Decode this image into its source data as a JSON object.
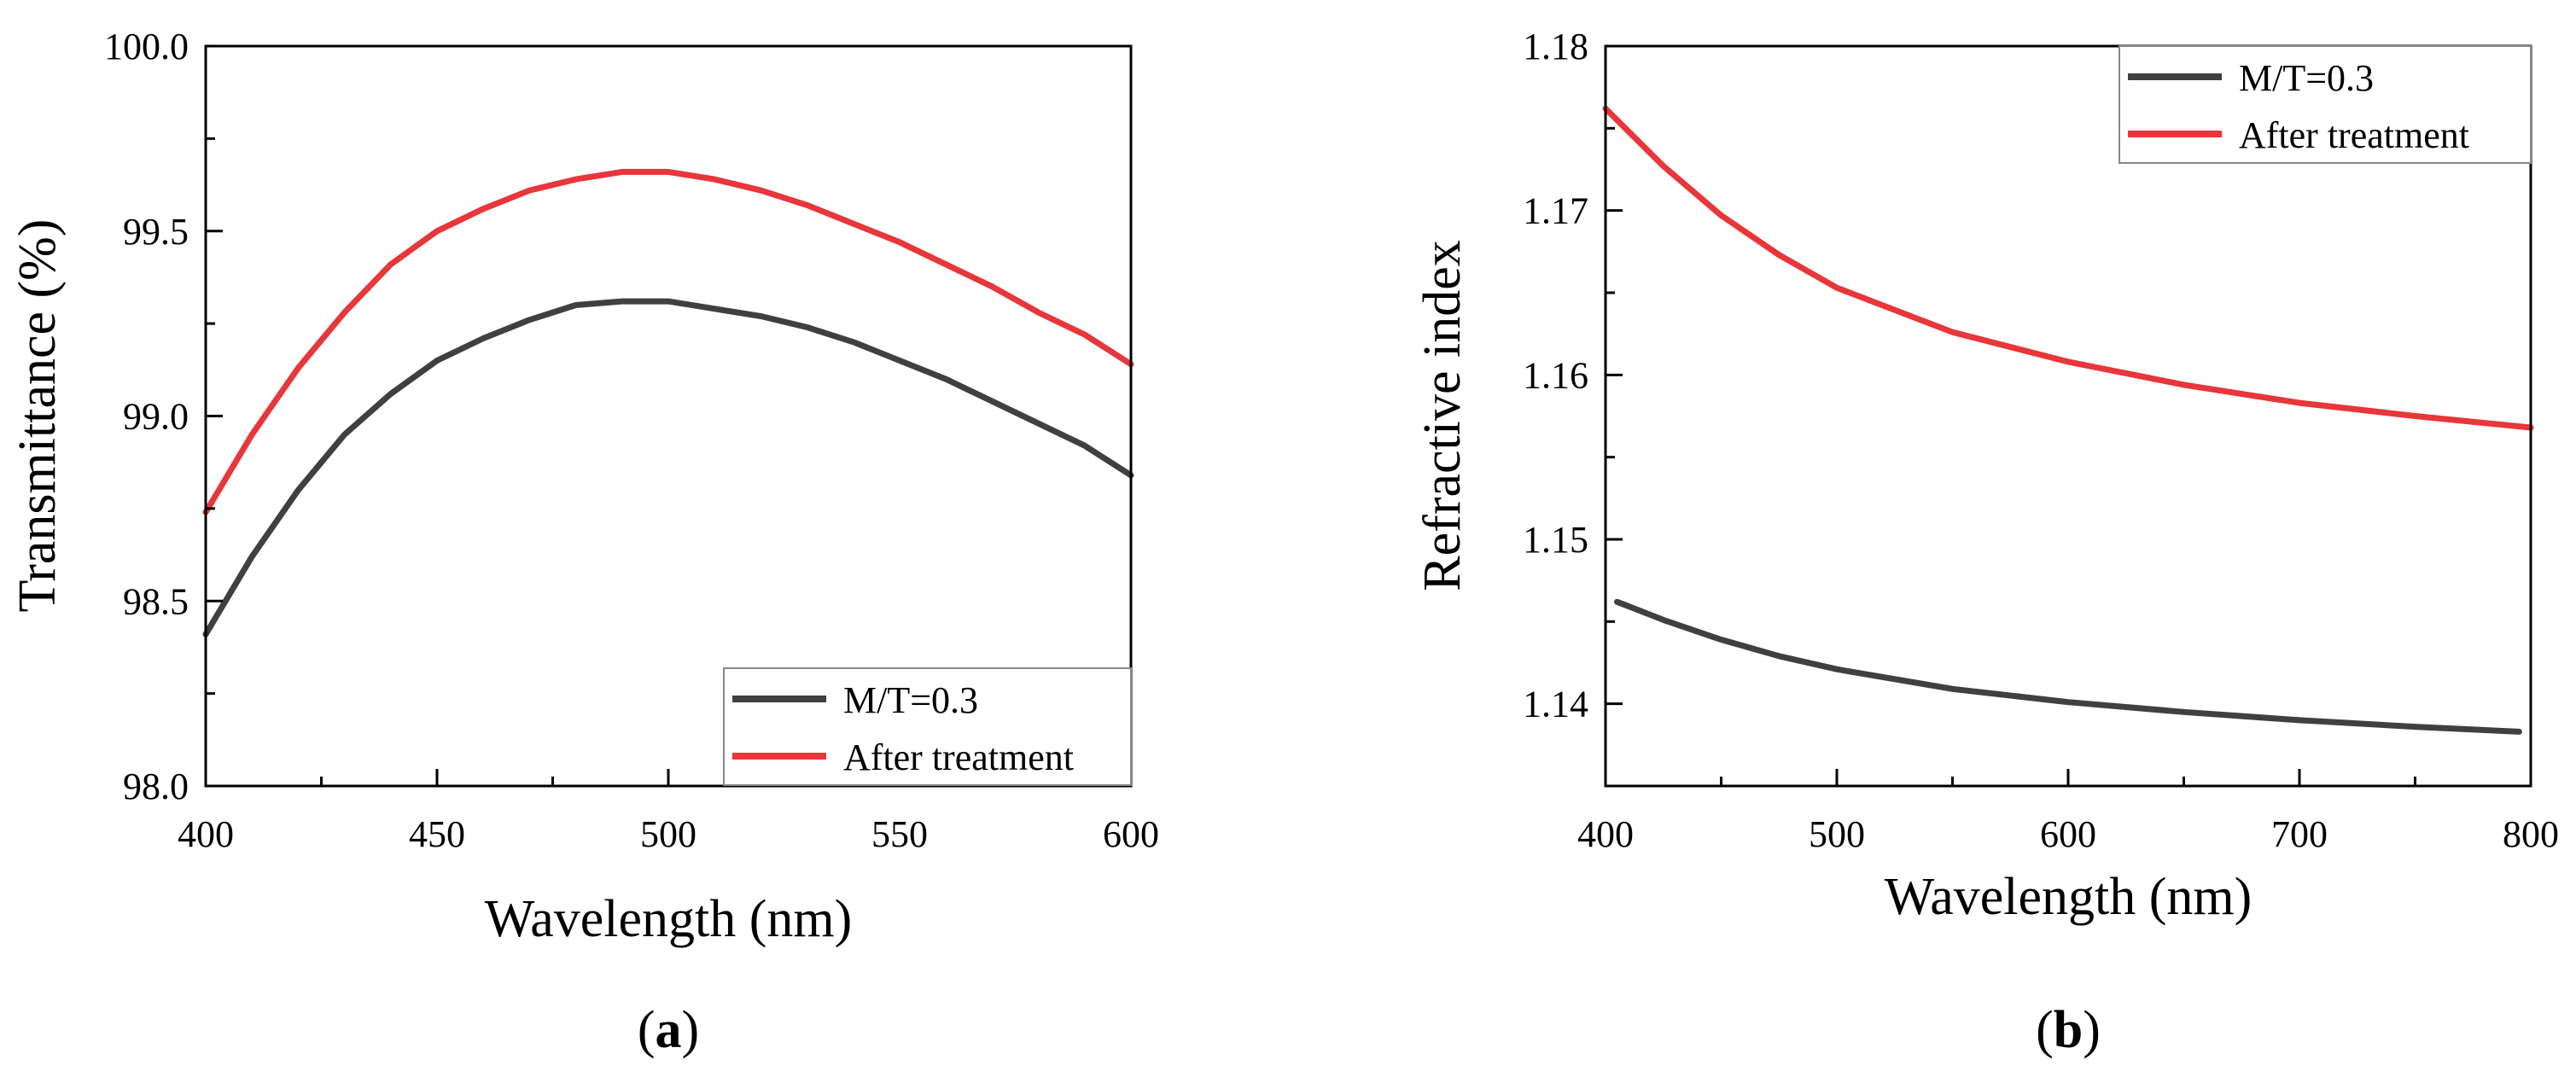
{
  "chart_data": [
    {
      "panel_label": "a",
      "type": "line",
      "xlabel": "Wavelength (nm)",
      "ylabel": "Transmittance (%)",
      "xlim": [
        400,
        600
      ],
      "ylim": [
        98.0,
        100.0
      ],
      "x_ticks": [
        400,
        450,
        500,
        550,
        600
      ],
      "y_ticks": [
        "98.0",
        "98.5",
        "99.0",
        "99.5",
        "100.0"
      ],
      "legend_position": "bottom-right",
      "series": [
        {
          "name": "M/T=0.3",
          "color": "#404040",
          "x": [
            400,
            410,
            420,
            430,
            440,
            450,
            460,
            470,
            480,
            490,
            500,
            510,
            520,
            530,
            540,
            550,
            560,
            570,
            580,
            590,
            600
          ],
          "y": [
            98.41,
            98.62,
            98.8,
            98.95,
            99.06,
            99.15,
            99.21,
            99.26,
            99.3,
            99.31,
            99.31,
            99.29,
            99.27,
            99.24,
            99.2,
            99.15,
            99.1,
            99.04,
            98.98,
            98.92,
            98.84
          ]
        },
        {
          "name": "After treatment",
          "color": "#e8363a",
          "x": [
            400,
            410,
            420,
            430,
            440,
            450,
            460,
            470,
            480,
            490,
            500,
            510,
            520,
            530,
            540,
            550,
            560,
            570,
            580,
            590,
            600
          ],
          "y": [
            98.74,
            98.95,
            99.13,
            99.28,
            99.41,
            99.5,
            99.56,
            99.61,
            99.64,
            99.66,
            99.66,
            99.64,
            99.61,
            99.57,
            99.52,
            99.47,
            99.41,
            99.35,
            99.28,
            99.22,
            99.14
          ]
        }
      ]
    },
    {
      "panel_label": "b",
      "type": "line",
      "xlabel": "Wavelength (nm)",
      "ylabel": "Refractive index",
      "xlim": [
        400,
        800
      ],
      "ylim": [
        1.135,
        1.18
      ],
      "x_ticks": [
        400,
        500,
        600,
        700,
        800
      ],
      "y_ticks": [
        "1.14",
        "1.15",
        "1.16",
        "1.17",
        "1.18"
      ],
      "legend_position": "top-right",
      "series": [
        {
          "name": "M/T=0.3",
          "color": "#404040",
          "x": [
            405,
            425,
            450,
            475,
            500,
            550,
            600,
            650,
            700,
            750,
            795
          ],
          "y": [
            1.1462,
            1.1451,
            1.1439,
            1.1429,
            1.1421,
            1.1409,
            1.1401,
            1.1395,
            1.139,
            1.1386,
            1.1383
          ]
        },
        {
          "name": "After treatment",
          "color": "#e8363a",
          "x": [
            400,
            425,
            450,
            475,
            500,
            550,
            600,
            650,
            700,
            750,
            800
          ],
          "y": [
            1.1762,
            1.1727,
            1.1697,
            1.1673,
            1.1653,
            1.1626,
            1.1608,
            1.1594,
            1.1583,
            1.1575,
            1.1568
          ]
        }
      ]
    }
  ]
}
